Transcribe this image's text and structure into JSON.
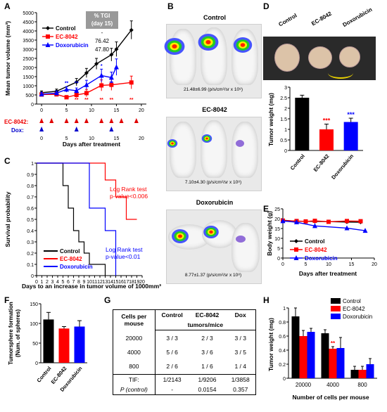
{
  "panels": {
    "A": "A",
    "B": "B",
    "C": "C",
    "D": "D",
    "E": "E",
    "F": "F",
    "G": "G",
    "H": "H"
  },
  "colors": {
    "control": "#000000",
    "ec8042": "#ff0000",
    "dox": "#0000ff"
  },
  "tgi": {
    "header1": "% TGI",
    "header2": "(day 15)",
    "rows": [
      "-",
      "76.42",
      "47.80"
    ]
  },
  "ec_dose_label": "EC-8042:",
  "dox_dose_label": "Dox:",
  "panelB": {
    "titles": [
      "Control",
      "EC-8042",
      "Doxorubicin"
    ],
    "captions": [
      "21.48±6.99 (p/s/cm²/sr x 10⁸)",
      "7.10±4.30 (p/s/cm²/sr x 10⁸)",
      "8.77±1.37 (p/s/cm²/sr x 10⁸)"
    ]
  },
  "panelD": {
    "photo_labels": [
      "Control",
      "EC-8042",
      "Doxorubicin"
    ]
  },
  "logrank": {
    "red": [
      "Log Rank test",
      "p-value<0.006"
    ],
    "blue": [
      "Log Rank test",
      "p-value<0.01"
    ]
  },
  "panelG": {
    "header": [
      "Cells per",
      "mouse",
      "Control",
      "EC-8042",
      "Dox",
      "tumors/mice"
    ],
    "rows": [
      [
        "20000",
        "3 / 3",
        "2 / 3",
        "3 / 3"
      ],
      [
        "4000",
        "5 / 6",
        "3 / 6",
        "3 / 5"
      ],
      [
        "800",
        "2 / 6",
        "1 / 6",
        "1 / 4"
      ]
    ],
    "tif": [
      "TIF:",
      "1/2143",
      "1/9206",
      "1/3858"
    ],
    "p": [
      "P (control)",
      "-",
      "0.0154",
      "0.357"
    ]
  },
  "chart_data": [
    {
      "id": "A",
      "type": "line",
      "xlabel": "Days after treatment",
      "ylabel": "Mean tumor volume (mm³)",
      "xlim": [
        -1,
        21
      ],
      "ylim": [
        0,
        5000
      ],
      "xticks": [
        0,
        5,
        10,
        15,
        20
      ],
      "yticks": [
        0,
        500,
        1000,
        1500,
        2000,
        2500,
        3000,
        3500,
        4000,
        4500,
        5000
      ],
      "series": [
        {
          "name": "Control",
          "color": "#000000",
          "marker": "diamond",
          "x": [
            0,
            3,
            7,
            9,
            11,
            14,
            15,
            18
          ],
          "y": [
            620,
            700,
            1200,
            1700,
            2200,
            2700,
            3000,
            4050
          ],
          "err": [
            100,
            120,
            200,
            250,
            300,
            350,
            400,
            500
          ]
        },
        {
          "name": "EC-8042",
          "color": "#ff0000",
          "marker": "square",
          "x": [
            0,
            3,
            5,
            7,
            9,
            12,
            14,
            18
          ],
          "y": [
            520,
            530,
            370,
            500,
            600,
            1020,
            1050,
            1180
          ],
          "err": [
            90,
            100,
            100,
            150,
            200,
            300,
            300,
            350
          ]
        },
        {
          "name": "Doxorubicin",
          "color": "#0000ff",
          "marker": "triangle",
          "x": [
            0,
            3,
            5,
            7,
            9,
            12,
            14,
            15
          ],
          "y": [
            540,
            600,
            800,
            730,
            1050,
            1560,
            1450,
            2020
          ],
          "err": [
            100,
            120,
            150,
            150,
            250,
            350,
            300,
            450
          ]
        }
      ],
      "ec_doses": [
        0,
        2,
        5,
        7,
        9,
        12,
        14,
        16,
        19
      ],
      "dox_doses": [
        0,
        7,
        14
      ]
    },
    {
      "id": "C",
      "type": "line",
      "xlabel": "Days to an increase in tumor volume of 1000mm³",
      "ylabel": "Survival probability",
      "xlim": [
        0,
        20
      ],
      "ylim": [
        0,
        1
      ],
      "xticks": [
        0,
        1,
        2,
        3,
        4,
        5,
        6,
        7,
        8,
        9,
        10,
        11,
        12,
        13,
        14,
        15,
        16,
        17,
        18,
        19,
        20
      ],
      "yticks": [
        0,
        0.1,
        0.2,
        0.3,
        0.4,
        0.5,
        0.6,
        0.7,
        0.8,
        0.9,
        1
      ],
      "series": [
        {
          "name": "Control",
          "color": "#000000",
          "x": [
            0,
            5,
            5,
            6,
            6,
            7,
            7,
            8,
            8,
            9,
            9,
            10,
            10,
            13,
            13
          ],
          "y": [
            1,
            1,
            0.8,
            0.8,
            0.6,
            0.6,
            0.4,
            0.4,
            0.3,
            0.3,
            0.2,
            0.2,
            0.1,
            0.1,
            0
          ]
        },
        {
          "name": "EC-8042",
          "color": "#ff0000",
          "x": [
            0,
            13,
            13,
            15,
            15,
            17,
            17,
            19
          ],
          "y": [
            1,
            1,
            0.85,
            0.85,
            0.7,
            0.7,
            0.5,
            0.5
          ]
        },
        {
          "name": "Doxorubicin",
          "color": "#0000ff",
          "x": [
            0,
            10,
            10,
            13,
            13,
            15,
            15
          ],
          "y": [
            1,
            1,
            0.6,
            0.6,
            0.4,
            0.4,
            0
          ]
        }
      ]
    },
    {
      "id": "D",
      "type": "bar",
      "ylabel": "Tumor weight (mg)",
      "ylim": [
        0,
        3
      ],
      "yticks": [
        0,
        0.5,
        1,
        1.5,
        2,
        2.5,
        3
      ],
      "categories": [
        "Control",
        "EC-8042",
        "Doxorubicin"
      ],
      "values": [
        2.5,
        1.0,
        1.35
      ],
      "err": [
        0.12,
        0.25,
        0.18
      ],
      "colors": [
        "#000000",
        "#ff0000",
        "#0000ff"
      ],
      "stars": [
        "",
        "***",
        "***"
      ]
    },
    {
      "id": "E",
      "type": "line",
      "xlabel": "Days after treatment",
      "ylabel": "Body weight (g)",
      "xlim": [
        0,
        20
      ],
      "ylim": [
        0,
        25
      ],
      "xticks": [
        0,
        5,
        10,
        15,
        20
      ],
      "yticks": [
        0,
        5,
        10,
        15,
        20,
        25
      ],
      "series": [
        {
          "name": "Control",
          "color": "#000000",
          "marker": "diamond",
          "x": [
            0,
            3,
            7,
            10,
            14,
            17
          ],
          "y": [
            19.2,
            18.7,
            18.6,
            18.5,
            18.3,
            18.2
          ]
        },
        {
          "name": "EC-8042",
          "color": "#ff0000",
          "marker": "square",
          "x": [
            0,
            3,
            5,
            7,
            10,
            14,
            17
          ],
          "y": [
            19,
            18.8,
            18.6,
            18.9,
            18.4,
            18.8,
            18.7
          ]
        },
        {
          "name": "Doxorubicin",
          "color": "#0000ff",
          "marker": "triangle",
          "x": [
            0,
            3,
            7,
            14,
            18
          ],
          "y": [
            18.8,
            18.2,
            16.3,
            15.2,
            13.9
          ]
        }
      ]
    },
    {
      "id": "F",
      "type": "bar",
      "ylabel": "Tumorsphere formation (Num. of spheres)",
      "ylim": [
        0,
        150
      ],
      "yticks": [
        0,
        50,
        100,
        150
      ],
      "categories": [
        "Control",
        "EC-8042",
        "Doxorubicin"
      ],
      "values": [
        110,
        87,
        92
      ],
      "err": [
        18,
        5,
        15
      ],
      "colors": [
        "#000000",
        "#ff0000",
        "#0000ff"
      ]
    },
    {
      "id": "H",
      "type": "bar",
      "xlabel": "Number of cells per mouse",
      "ylabel": "Tumor weight (mg)",
      "ylim": [
        0,
        1
      ],
      "yticks": [
        0,
        0.2,
        0.4,
        0.6,
        0.8,
        1
      ],
      "categories": [
        "20000",
        "4000",
        "800"
      ],
      "series": [
        {
          "name": "Control",
          "color": "#000000",
          "values": [
            0.88,
            0.64,
            0.12
          ],
          "err": [
            0.12,
            0.05,
            0.05
          ]
        },
        {
          "name": "EC-8042",
          "color": "#ff0000",
          "values": [
            0.6,
            0.42,
            0.12
          ],
          "err": [
            0.08,
            0.03,
            0.05
          ]
        },
        {
          "name": "Doxorubicin",
          "color": "#0000ff",
          "values": [
            0.66,
            0.43,
            0.2
          ],
          "err": [
            0.05,
            0.15,
            0.08
          ]
        }
      ],
      "stars": [
        [
          "",
          "",
          ""
        ],
        [
          "",
          "**",
          ""
        ],
        [
          "",
          "",
          ""
        ]
      ]
    }
  ]
}
